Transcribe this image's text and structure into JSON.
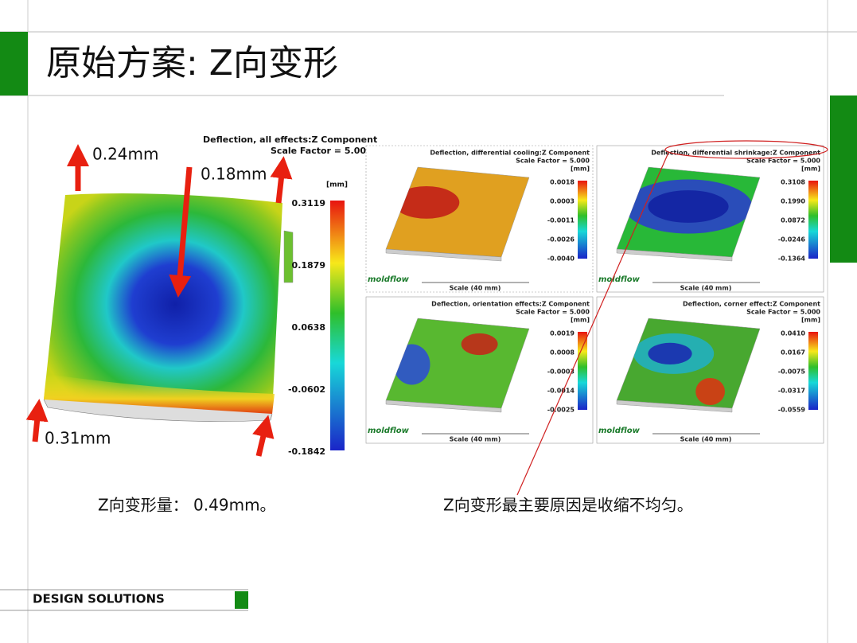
{
  "header": {
    "title": "原始方案: Z向变形"
  },
  "main_plot": {
    "title": "Deflection, all effects:Z Component",
    "scale": "Scale Factor = 5.000",
    "unit": "[mm]",
    "legend_ticks": [
      "0.3119",
      "0.1879",
      "0.0638",
      "-0.0602",
      "-0.1842"
    ],
    "annotations": [
      "0.24mm",
      "0.18mm",
      "0.31mm"
    ]
  },
  "small_plots": [
    {
      "title": "Deflection, differential cooling:Z Component",
      "scale": "Scale Factor = 5.000",
      "unit": "[mm]",
      "legend_ticks": [
        "0.0018",
        "0.0003",
        "-0.0011",
        "-0.0026",
        "-0.0040"
      ],
      "scale_bar": "Scale (40 mm)",
      "logo": "moldflow"
    },
    {
      "title": "Deflection, differential shrinkage:Z Component",
      "scale": "Scale Factor = 5.000",
      "unit": "[mm]",
      "legend_ticks": [
        "0.3108",
        "0.1990",
        "0.0872",
        "-0.0246",
        "-0.1364"
      ],
      "scale_bar": "Scale (40 mm)",
      "logo": "moldflow"
    },
    {
      "title": "Deflection, orientation effects:Z Component",
      "scale": "Scale Factor = 5.000",
      "unit": "[mm]",
      "legend_ticks": [
        "0.0019",
        "0.0008",
        "-0.0003",
        "-0.0014",
        "-0.0025"
      ],
      "scale_bar": "Scale (40 mm)",
      "logo": "moldflow"
    },
    {
      "title": "Deflection, corner effect:Z Component",
      "scale": "Scale Factor = 5.000",
      "unit": "[mm]",
      "legend_ticks": [
        "0.0410",
        "0.0167",
        "-0.0075",
        "-0.0317",
        "-0.0559"
      ],
      "scale_bar": "Scale (40 mm)",
      "logo": "moldflow"
    }
  ],
  "captions": [
    "Z向变形量： 0.49mm。",
    "Z向变形最主要原因是收缩不均匀。"
  ],
  "footer": {
    "label": "DESIGN SOLUTIONS"
  }
}
